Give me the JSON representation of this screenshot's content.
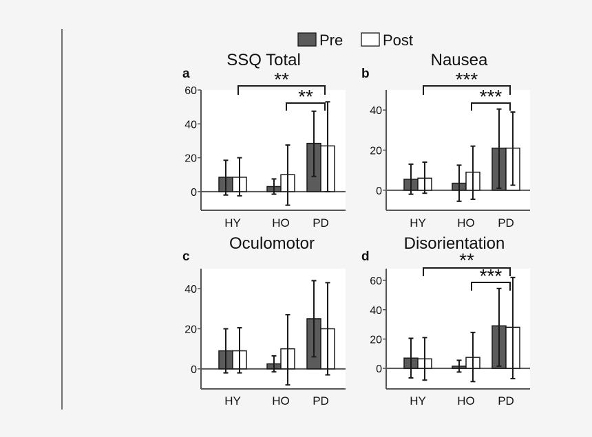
{
  "legend": {
    "placement": "top-center",
    "items": [
      {
        "label": "Pre",
        "fill": "#5b5b5b"
      },
      {
        "label": "Post",
        "fill": "#ffffff"
      }
    ]
  },
  "colors": {
    "pre": "#5b5b5b",
    "post": "#ffffff",
    "stroke": "#1a1a1a",
    "axis": "#555555",
    "plot_bg": "#ffffff"
  },
  "chart_data": [
    {
      "type": "bar",
      "panel_label": "a",
      "title": "SSQ Total",
      "categories": [
        "HY",
        "HO",
        "PD"
      ],
      "series": [
        {
          "name": "Pre",
          "values": [
            8.5,
            3,
            28.5
          ],
          "err_low": [
            10.5,
            4.5,
            19.5
          ],
          "err_high": [
            10,
            4.5,
            19
          ]
        },
        {
          "name": "Post",
          "values": [
            8.5,
            10,
            27
          ],
          "err_low": [
            11,
            18,
            27
          ],
          "err_high": [
            11.5,
            17.5,
            26
          ]
        }
      ],
      "yticks": [
        0,
        20,
        40,
        60
      ],
      "ylim": [
        -11,
        60
      ],
      "grid": false,
      "significance": [
        {
          "from": "HY",
          "to": "PD",
          "label": "**"
        },
        {
          "from": "HO",
          "to": "PD",
          "label": "**"
        }
      ]
    },
    {
      "type": "bar",
      "panel_label": "b",
      "title": "Nausea",
      "categories": [
        "HY",
        "HO",
        "PD"
      ],
      "series": [
        {
          "name": "Pre",
          "values": [
            5.5,
            3.5,
            21
          ],
          "err_low": [
            7.5,
            9,
            20
          ],
          "err_high": [
            7.5,
            9,
            19.5
          ]
        },
        {
          "name": "Post",
          "values": [
            6,
            9,
            21
          ],
          "err_low": [
            7.5,
            13.5,
            18.5
          ],
          "err_high": [
            8,
            13,
            18
          ]
        }
      ],
      "yticks": [
        0,
        20,
        40
      ],
      "ylim": [
        -10,
        50
      ],
      "grid": false,
      "significance": [
        {
          "from": "HY",
          "to": "PD",
          "label": "***"
        },
        {
          "from": "HO",
          "to": "PD",
          "label": "***"
        }
      ]
    },
    {
      "type": "bar",
      "panel_label": "c",
      "title": "Oculomotor",
      "categories": [
        "HY",
        "HO",
        "PD"
      ],
      "series": [
        {
          "name": "Pre",
          "values": [
            9,
            2.5,
            25
          ],
          "err_low": [
            11,
            4,
            19
          ],
          "err_high": [
            11,
            4,
            19
          ]
        },
        {
          "name": "Post",
          "values": [
            9,
            10,
            20
          ],
          "err_low": [
            11,
            18,
            23
          ],
          "err_high": [
            11.5,
            17,
            23
          ]
        }
      ],
      "yticks": [
        0,
        20,
        40
      ],
      "ylim": [
        -10,
        50
      ],
      "grid": false,
      "significance": []
    },
    {
      "type": "bar",
      "panel_label": "d",
      "title": "Disorientation",
      "categories": [
        "HY",
        "HO",
        "PD"
      ],
      "series": [
        {
          "name": "Pre",
          "values": [
            7,
            1.5,
            29
          ],
          "err_low": [
            13.5,
            4,
            27.5
          ],
          "err_high": [
            13.5,
            4,
            25.5
          ]
        },
        {
          "name": "Post",
          "values": [
            6.5,
            7.5,
            28
          ],
          "err_low": [
            14.5,
            16.5,
            35
          ],
          "err_high": [
            14.5,
            17,
            34
          ]
        }
      ],
      "yticks": [
        0,
        20,
        40,
        60
      ],
      "ylim": [
        -14,
        68
      ],
      "grid": false,
      "significance": [
        {
          "from": "HY",
          "to": "PD",
          "label": "**"
        },
        {
          "from": "HO",
          "to": "PD",
          "label": "***"
        }
      ]
    }
  ]
}
